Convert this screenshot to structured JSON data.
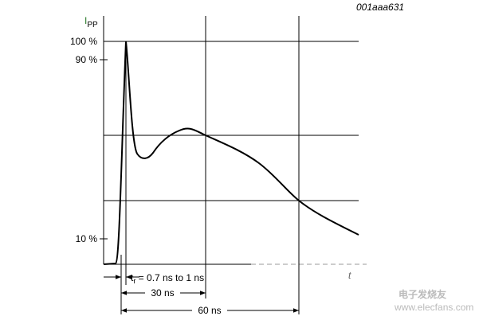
{
  "figure_id": "001aaa631",
  "y_axis": {
    "main": "I",
    "sub": "PP"
  },
  "y_labels": [
    "100 %",
    "90 %",
    "10 %"
  ],
  "x_axis": "t",
  "rise_time": {
    "main": "t",
    "sub": "r",
    "rest": " = 0.7 ns to 1 ns"
  },
  "spans": [
    "30 ns",
    "60 ns"
  ],
  "watermark": {
    "name": "电子发烧友",
    "url": "www.elecfans.com"
  }
}
